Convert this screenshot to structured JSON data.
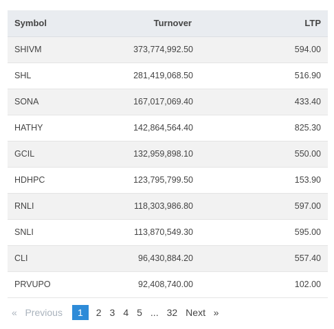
{
  "table": {
    "headers": {
      "symbol": "Symbol",
      "turnover": "Turnover",
      "ltp": "LTP"
    },
    "rows": [
      {
        "symbol": "SHIVM",
        "turnover": "373,774,992.50",
        "ltp": "594.00"
      },
      {
        "symbol": "SHL",
        "turnover": "281,419,068.50",
        "ltp": "516.90"
      },
      {
        "symbol": "SONA",
        "turnover": "167,017,069.40",
        "ltp": "433.40"
      },
      {
        "symbol": "HATHY",
        "turnover": "142,864,564.40",
        "ltp": "825.30"
      },
      {
        "symbol": "GCIL",
        "turnover": "132,959,898.10",
        "ltp": "550.00"
      },
      {
        "symbol": "HDHPC",
        "turnover": "123,795,799.50",
        "ltp": "153.90"
      },
      {
        "symbol": "RNLI",
        "turnover": "118,303,986.80",
        "ltp": "597.00"
      },
      {
        "symbol": "SNLI",
        "turnover": "113,870,549.30",
        "ltp": "595.00"
      },
      {
        "symbol": "CLI",
        "turnover": "96,430,884.20",
        "ltp": "557.40"
      },
      {
        "symbol": "PRVUPO",
        "turnover": "92,408,740.00",
        "ltp": "102.00"
      }
    ]
  },
  "pagination": {
    "prev_arrow": "«",
    "prev_label": "Previous",
    "pages": [
      "1",
      "2",
      "3",
      "4",
      "5"
    ],
    "ellipsis": "...",
    "last_page": "32",
    "next_label": "Next",
    "next_arrow": "»",
    "active_color": "#2e8bd8"
  }
}
